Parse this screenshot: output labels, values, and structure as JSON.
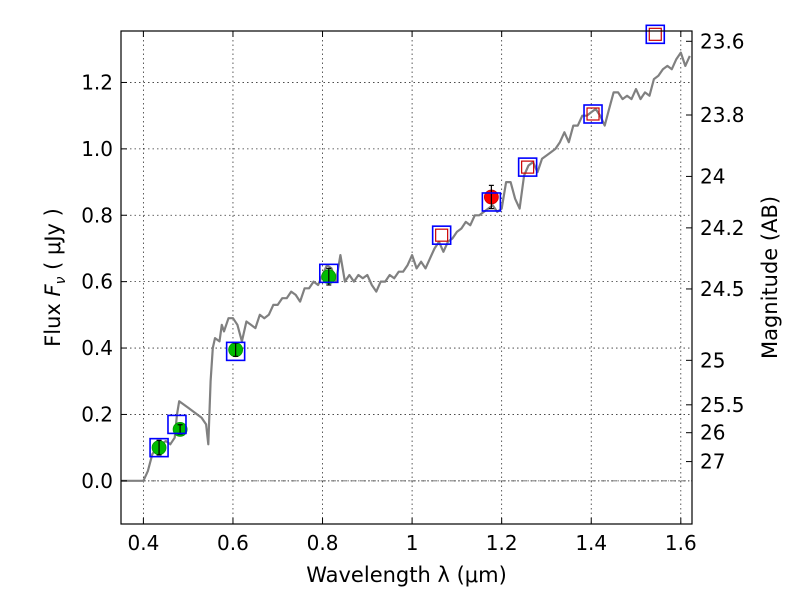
{
  "chart_data": {
    "type": "scatter",
    "xlabel": "Wavelength  λ (μm)",
    "ylabel": "Flux  F_ν  ( μJy )",
    "y2label": "Magnitude (AB)",
    "xlim": [
      0.35,
      1.625
    ],
    "ylim": [
      -0.13,
      1.355
    ],
    "x_ticks": [
      0.4,
      0.6,
      0.8,
      1.0,
      1.2,
      1.4,
      1.6
    ],
    "x_tick_labels": [
      "0.4",
      "0.6",
      "0.8",
      "1",
      "1.2",
      "1.4",
      "1.6"
    ],
    "y_ticks": [
      0.0,
      0.2,
      0.4,
      0.6,
      0.8,
      1.0,
      1.2
    ],
    "y_tick_labels": [
      "0.0",
      "0.2",
      "0.4",
      "0.6",
      "0.8",
      "1.0",
      "1.2"
    ],
    "mag_ticks": [
      {
        "label": "23.6",
        "flux": 1.324
      },
      {
        "label": "23.8",
        "flux": 1.102
      },
      {
        "label": "24",
        "flux": 0.917
      },
      {
        "label": "24.2",
        "flux": 0.762
      },
      {
        "label": "24.5",
        "flux": 0.578
      },
      {
        "label": "25",
        "flux": 0.363
      },
      {
        "label": "25.5",
        "flux": 0.229
      },
      {
        "label": "26",
        "flux": 0.145
      },
      {
        "label": "27",
        "flux": 0.058
      }
    ],
    "grid": true,
    "zero_line": true,
    "model_spectrum": {
      "color": "#808080",
      "x": [
        0.35,
        0.4,
        0.41,
        0.42,
        0.43,
        0.44,
        0.45,
        0.46,
        0.47,
        0.475,
        0.48,
        0.5,
        0.52,
        0.53,
        0.54,
        0.545,
        0.55,
        0.555,
        0.56,
        0.57,
        0.575,
        0.58,
        0.59,
        0.6,
        0.61,
        0.62,
        0.63,
        0.64,
        0.65,
        0.66,
        0.67,
        0.68,
        0.69,
        0.7,
        0.71,
        0.72,
        0.73,
        0.74,
        0.75,
        0.76,
        0.77,
        0.78,
        0.79,
        0.8,
        0.81,
        0.82,
        0.83,
        0.84,
        0.85,
        0.86,
        0.87,
        0.88,
        0.89,
        0.9,
        0.91,
        0.92,
        0.93,
        0.94,
        0.95,
        0.96,
        0.97,
        0.98,
        0.99,
        1.0,
        1.01,
        1.02,
        1.03,
        1.04,
        1.05,
        1.06,
        1.07,
        1.08,
        1.09,
        1.1,
        1.11,
        1.12,
        1.13,
        1.14,
        1.15,
        1.16,
        1.17,
        1.18,
        1.19,
        1.2,
        1.21,
        1.22,
        1.23,
        1.24,
        1.25,
        1.26,
        1.27,
        1.28,
        1.29,
        1.3,
        1.31,
        1.32,
        1.33,
        1.34,
        1.35,
        1.36,
        1.37,
        1.38,
        1.39,
        1.4,
        1.41,
        1.42,
        1.43,
        1.44,
        1.45,
        1.46,
        1.47,
        1.48,
        1.49,
        1.5,
        1.51,
        1.52,
        1.53,
        1.54,
        1.55,
        1.56,
        1.57,
        1.58,
        1.59,
        1.6,
        1.61,
        1.62
      ],
      "y": [
        0.0,
        0.0,
        0.03,
        0.08,
        0.1,
        0.11,
        0.12,
        0.11,
        0.13,
        0.2,
        0.24,
        0.22,
        0.2,
        0.19,
        0.17,
        0.11,
        0.3,
        0.4,
        0.43,
        0.42,
        0.47,
        0.45,
        0.49,
        0.49,
        0.47,
        0.42,
        0.48,
        0.47,
        0.46,
        0.5,
        0.49,
        0.5,
        0.53,
        0.53,
        0.55,
        0.55,
        0.57,
        0.56,
        0.54,
        0.58,
        0.58,
        0.6,
        0.59,
        0.62,
        0.65,
        0.64,
        0.6,
        0.68,
        0.6,
        0.62,
        0.6,
        0.62,
        0.61,
        0.62,
        0.59,
        0.57,
        0.6,
        0.6,
        0.62,
        0.61,
        0.63,
        0.63,
        0.65,
        0.68,
        0.64,
        0.66,
        0.64,
        0.67,
        0.7,
        0.72,
        0.69,
        0.72,
        0.73,
        0.75,
        0.76,
        0.78,
        0.77,
        0.8,
        0.8,
        0.81,
        0.82,
        0.83,
        0.81,
        0.82,
        0.9,
        0.9,
        0.85,
        0.82,
        0.92,
        0.95,
        0.96,
        0.93,
        0.97,
        0.98,
        0.99,
        1.0,
        1.02,
        1.05,
        1.02,
        1.07,
        1.07,
        1.1,
        1.1,
        1.11,
        1.12,
        1.1,
        1.07,
        1.12,
        1.17,
        1.17,
        1.15,
        1.16,
        1.15,
        1.18,
        1.15,
        1.17,
        1.16,
        1.21,
        1.22,
        1.24,
        1.25,
        1.24,
        1.27,
        1.29,
        1.25,
        1.28
      ]
    },
    "series": [
      {
        "marker": "green-circle-with-errorbar",
        "color": "#00bb00",
        "x": [
          0.435,
          0.482,
          0.606,
          0.814
        ],
        "y": [
          0.1,
          0.155,
          0.395,
          0.615
        ],
        "yerr": [
          0.022,
          0.014,
          0.02,
          0.025
        ]
      },
      {
        "marker": "red-circle-with-errorbar",
        "color": "#ff0000",
        "x": [
          1.177
        ],
        "y": [
          0.855
        ],
        "yerr": [
          0.035
        ]
      },
      {
        "marker": "blue-open-square",
        "color": "#0000ff",
        "x": [
          0.435,
          0.475,
          0.606,
          0.814,
          1.177
        ],
        "y": [
          0.1,
          0.17,
          0.39,
          0.625,
          0.84
        ]
      },
      {
        "marker": "red-open-square-in-blue-square",
        "color": "#cc0000",
        "x": [
          1.066,
          1.258,
          1.404,
          1.543
        ],
        "y": [
          0.74,
          0.945,
          1.105,
          1.345
        ]
      }
    ]
  }
}
